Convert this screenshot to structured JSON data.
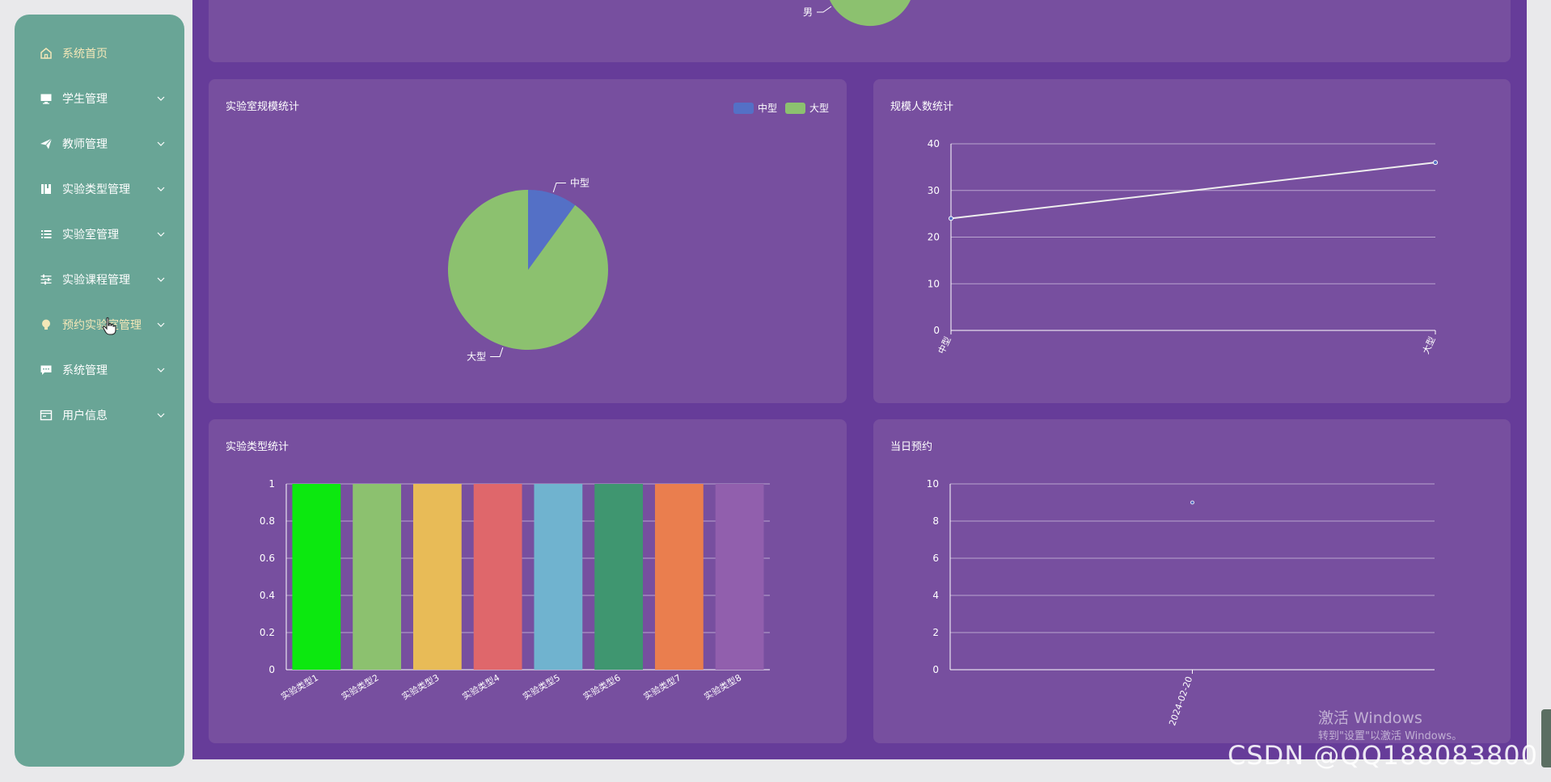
{
  "sidebar": {
    "items": [
      {
        "label": "系统首页",
        "icon": "home-icon"
      },
      {
        "label": "学生管理",
        "icon": "monitor-icon"
      },
      {
        "label": "教师管理",
        "icon": "paper-plane-icon"
      },
      {
        "label": "实验类型管理",
        "icon": "book-icon"
      },
      {
        "label": "实验室管理",
        "icon": "list-icon"
      },
      {
        "label": "实验课程管理",
        "icon": "sliders-icon"
      },
      {
        "label": "预约实验室管理",
        "icon": "lightbulb-icon"
      },
      {
        "label": "系统管理",
        "icon": "chat-icon"
      },
      {
        "label": "用户信息",
        "icon": "id-card-icon"
      }
    ]
  },
  "top_panel": {
    "pie_label": "男"
  },
  "colors": {
    "sidebar": "#69a596",
    "main_bg": "#663c99",
    "panel_bg": "#774f9f",
    "pie_blue": "#5470c6",
    "pie_green": "#8cc16f"
  },
  "chart_data": [
    {
      "type": "pie",
      "title": "实验室规模统计",
      "legend": [
        "中型",
        "大型"
      ],
      "legend_position": "top-right",
      "slices": [
        {
          "name": "中型",
          "value": 10,
          "color": "#5470c6"
        },
        {
          "name": "大型",
          "value": 90,
          "color": "#8cc16f"
        }
      ]
    },
    {
      "type": "line",
      "title": "规模人数统计",
      "categories": [
        "中型",
        "大型"
      ],
      "values": [
        24,
        36
      ],
      "ylim": [
        0,
        40
      ],
      "yticks": [
        0,
        10,
        20,
        30,
        40
      ],
      "grid": true
    },
    {
      "type": "bar",
      "title": "实验类型统计",
      "categories": [
        "实验类型1",
        "实验类型2",
        "实验类型3",
        "实验类型4",
        "实验类型5",
        "实验类型6",
        "实验类型7",
        "实验类型8"
      ],
      "values": [
        1,
        1,
        1,
        1,
        1,
        1,
        1,
        1
      ],
      "colors": [
        "#0ce80f",
        "#8cc16f",
        "#e8bb57",
        "#df676b",
        "#70b3cf",
        "#3f9670",
        "#ea7e4e",
        "#915fad"
      ],
      "ylim": [
        0,
        1
      ],
      "yticks": [
        "0",
        "0.2",
        "0.4",
        "0.6",
        "0.8",
        "1"
      ],
      "grid": true
    },
    {
      "type": "scatter",
      "title": "当日预约",
      "categories": [
        "2024-02-20"
      ],
      "values": [
        9
      ],
      "ylim": [
        0,
        10
      ],
      "yticks": [
        0,
        2,
        4,
        6,
        8,
        10
      ],
      "grid": true
    }
  ],
  "watermarks": {
    "activate_title": "激活 Windows",
    "activate_hint": "转到\"设置\"以激活 Windows。",
    "csdn": "CSDN @QQ188083800"
  }
}
